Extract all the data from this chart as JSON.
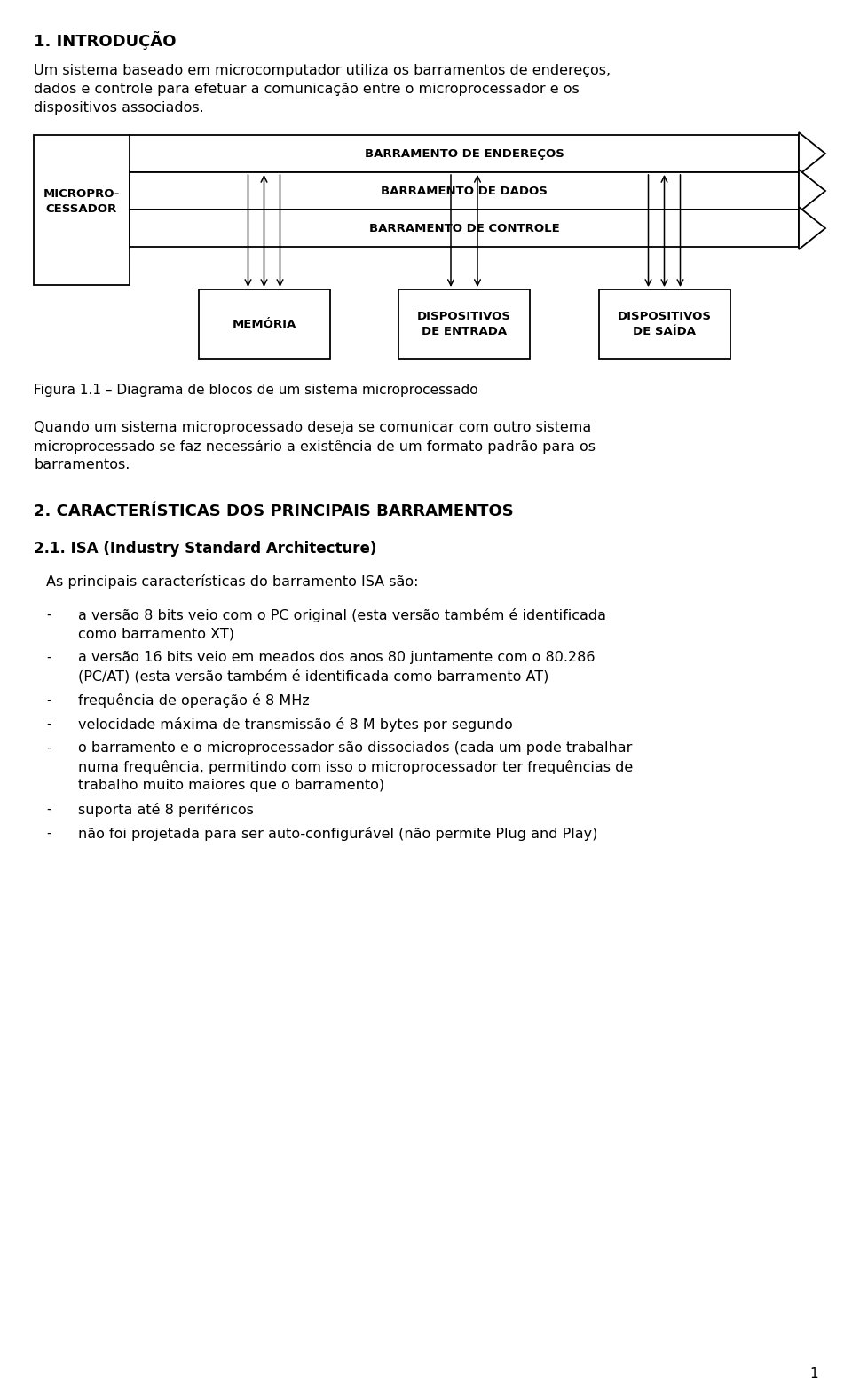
{
  "title_section": "1. INTRODUÇÃO",
  "intro_lines": [
    "Um sistema baseado em microcomputador utiliza os barramentos de endereços,",
    "dados e controle para efetuar a comunicação entre o microprocessador e os",
    "dispositivos associados."
  ],
  "figure_caption": "Figura 1.1 – Diagrama de blocos de um sistema microprocessado",
  "para2_lines": [
    "Quando um sistema microprocessado deseja se comunicar com outro sistema",
    "microprocessado se faz necessário a existência de um formato padrão para os",
    "barramentos."
  ],
  "section2": "2. CARACTERÍSTICAS DOS PRINCIPAIS BARRAMENTOS",
  "section21": "2.1. ISA (Industry Standard Architecture)",
  "isa_intro": "As principais características do barramento ISA são:",
  "bullet_items": [
    [
      "a versão 8 bits veio com o PC original (esta versão também é identificada",
      "como barramento XT)"
    ],
    [
      "a versão 16 bits veio em meados dos anos 80 juntamente com o 80.286",
      "(PC/AT) (esta versão também é identificada como barramento AT)"
    ],
    [
      "frequência de operação é 8 MHz"
    ],
    [
      "velocidade máxima de transmissão é 8 M bytes por segundo"
    ],
    [
      "o barramento e o microprocessador são dissociados (cada um pode trabalhar",
      "numa frequência, permitindo com isso o microprocessador ter frequências de",
      "trabalho muito maiores que o barramento)"
    ],
    [
      "suporta até 8 periféricos"
    ],
    [
      "não foi projetada para ser auto-configurável (não permite Plug and Play)"
    ]
  ],
  "page_num": "1",
  "bg_color": "#ffffff",
  "diagram": {
    "bus_address": "BARRAMENTO DE ENDEREÇOS",
    "bus_data": "BARRAMENTO DE DADOS",
    "bus_control": "BARRAMENTO DE CONTROLE",
    "box1": "MEMÓRIA",
    "box2": "DISPOSITIVOS\nDE ENTRADA",
    "box3": "DISPOSITIVOS\nDE SAÍDA",
    "micropro": "MICROPRO-\nCESSADOR"
  }
}
